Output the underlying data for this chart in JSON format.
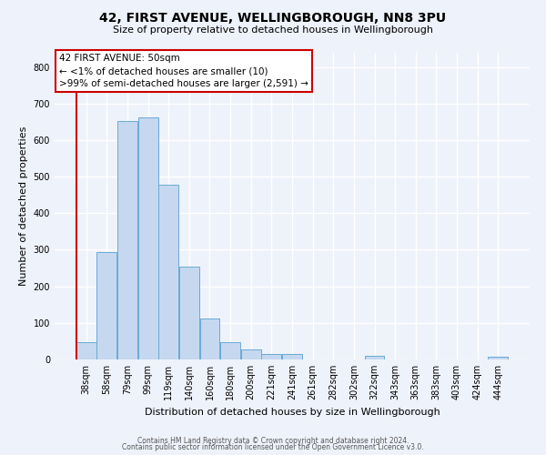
{
  "title": "42, FIRST AVENUE, WELLINGBOROUGH, NN8 3PU",
  "subtitle": "Size of property relative to detached houses in Wellingborough",
  "xlabel": "Distribution of detached houses by size in Wellingborough",
  "ylabel": "Number of detached properties",
  "bar_labels": [
    "38sqm",
    "58sqm",
    "79sqm",
    "99sqm",
    "119sqm",
    "140sqm",
    "160sqm",
    "180sqm",
    "200sqm",
    "221sqm",
    "241sqm",
    "261sqm",
    "282sqm",
    "302sqm",
    "322sqm",
    "343sqm",
    "363sqm",
    "383sqm",
    "403sqm",
    "424sqm",
    "444sqm"
  ],
  "bar_heights": [
    47,
    293,
    652,
    663,
    478,
    253,
    113,
    48,
    28,
    15,
    14,
    0,
    0,
    0,
    10,
    0,
    0,
    0,
    0,
    0,
    8
  ],
  "bar_color": "#c5d8f0",
  "bar_edge_color": "#6aaad4",
  "marker_color": "#cc0000",
  "ylim": [
    0,
    840
  ],
  "yticks": [
    0,
    100,
    200,
    300,
    400,
    500,
    600,
    700,
    800
  ],
  "annotation_title": "42 FIRST AVENUE: 50sqm",
  "annotation_line1": "← <1% of detached houses are smaller (10)",
  "annotation_line2": ">99% of semi-detached houses are larger (2,591) →",
  "footer_line1": "Contains HM Land Registry data © Crown copyright and database right 2024.",
  "footer_line2": "Contains public sector information licensed under the Open Government Licence v3.0.",
  "bg_color": "#eef2fa",
  "grid_color": "#d0d8e8"
}
